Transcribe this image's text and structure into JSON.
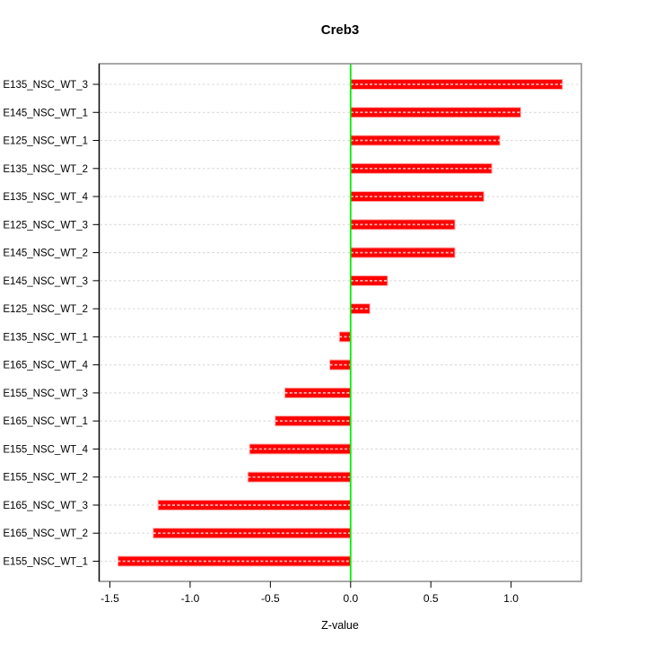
{
  "chart_data": {
    "type": "bar",
    "orientation": "horizontal",
    "title": "Creb3",
    "xlabel": "Z-value",
    "ylabel": "",
    "categories": [
      "E135_NSC_WT_3",
      "E145_NSC_WT_1",
      "E125_NSC_WT_1",
      "E135_NSC_WT_2",
      "E135_NSC_WT_4",
      "E125_NSC_WT_3",
      "E145_NSC_WT_2",
      "E145_NSC_WT_3",
      "E125_NSC_WT_2",
      "E135_NSC_WT_1",
      "E165_NSC_WT_4",
      "E155_NSC_WT_3",
      "E165_NSC_WT_1",
      "E155_NSC_WT_4",
      "E155_NSC_WT_2",
      "E165_NSC_WT_3",
      "E165_NSC_WT_2",
      "E155_NSC_WT_1"
    ],
    "values": [
      1.32,
      1.06,
      0.93,
      0.88,
      0.83,
      0.65,
      0.65,
      0.23,
      0.12,
      -0.07,
      -0.13,
      -0.41,
      -0.47,
      -0.63,
      -0.64,
      -1.2,
      -1.23,
      -1.45
    ],
    "x_ticks": [
      -1.5,
      -1.0,
      -0.5,
      0.0,
      0.5,
      1.0
    ],
    "x_tick_labels": [
      "-1.5",
      "-1.0",
      "-0.5",
      "0.0",
      "0.5",
      "1.0"
    ],
    "xlim": [
      -1.567,
      1.438
    ],
    "grid": true,
    "legend_position": "none",
    "bar_color": "#ff0000",
    "bar_halo_color": "#ffb0b0",
    "zero_line_color": "#00ee00",
    "grid_color": "#d9d9d9",
    "box_color": "#8c8c8c",
    "axis_color": "#000000"
  }
}
